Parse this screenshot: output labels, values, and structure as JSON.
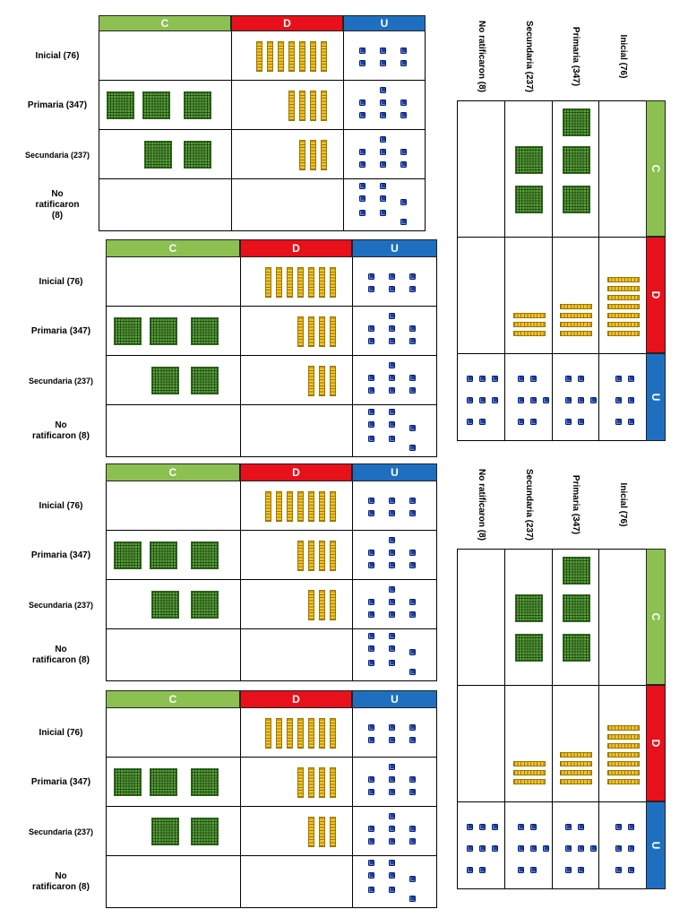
{
  "headers": {
    "c": {
      "label": "C",
      "color": "#8cc152"
    },
    "d": {
      "label": "D",
      "color": "#e8101a"
    },
    "u": {
      "label": "U",
      "color": "#1f6fc1"
    }
  },
  "block_colors": {
    "hundreds_flat": "#56a436",
    "tens_rod": "#f3c32a",
    "ones_unit": "#1d3fa8"
  },
  "rows": [
    {
      "label": "Inicial (76)",
      "hundreds": 0,
      "tens": 7,
      "ones": 6
    },
    {
      "label": "Primaria (347)",
      "hundreds": 3,
      "tens": 4,
      "ones": 7
    },
    {
      "label": "Secundaria (237)",
      "hundreds": 2,
      "tens": 3,
      "ones": 7
    },
    {
      "label": "No ratificaron (8)",
      "hundreds": 0,
      "tens": 0,
      "ones": 8
    }
  ],
  "place_value_tables": [
    {
      "id": "table-1",
      "orientation": "vertical"
    },
    {
      "id": "table-2",
      "orientation": "vertical"
    },
    {
      "id": "table-3",
      "orientation": "vertical"
    },
    {
      "id": "table-4",
      "orientation": "vertical"
    },
    {
      "id": "table-rotated-1",
      "orientation": "rotated"
    },
    {
      "id": "table-rotated-2",
      "orientation": "rotated"
    }
  ]
}
